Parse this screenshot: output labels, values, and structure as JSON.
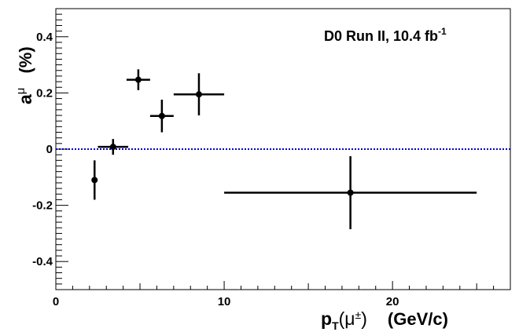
{
  "chart_data": {
    "type": "scatter",
    "annotation": {
      "main": "D0 Run II, 10.4 fb",
      "sup": "-1"
    },
    "xlabel": {
      "p": "p",
      "sub": "T",
      "mu": "(μ",
      "sup": "±",
      "close": ")",
      "units": "(GeV/c)"
    },
    "ylabel": {
      "a": "a",
      "sup": "μ",
      "units": "(%)"
    },
    "xlim": [
      0,
      27
    ],
    "ylim": [
      -0.5,
      0.5
    ],
    "xticks": [
      0,
      10,
      20
    ],
    "xtick_labels": [
      "0",
      "10",
      "20"
    ],
    "yticks": [
      -0.4,
      -0.2,
      0,
      0.2,
      0.4
    ],
    "ytick_labels": [
      "-0.4",
      "-0.2",
      "0",
      "0.2",
      "0.4"
    ],
    "reference_line": {
      "y": 0,
      "style": "dotted",
      "color": "#0000dd"
    },
    "marker_color": "#000000",
    "points": [
      {
        "x": 2.3,
        "y": -0.11,
        "xlo": 2.3,
        "xhi": 2.3,
        "ylo": -0.18,
        "yhi": -0.04
      },
      {
        "x": 3.4,
        "y": 0.008,
        "xlo": 2.5,
        "xhi": 4.3,
        "ylo": -0.02,
        "yhi": 0.036
      },
      {
        "x": 4.9,
        "y": 0.247,
        "xlo": 4.2,
        "xhi": 5.6,
        "ylo": 0.21,
        "yhi": 0.284
      },
      {
        "x": 6.3,
        "y": 0.118,
        "xlo": 5.6,
        "xhi": 7.0,
        "ylo": 0.06,
        "yhi": 0.176
      },
      {
        "x": 8.5,
        "y": 0.195,
        "xlo": 7.0,
        "xhi": 10.0,
        "ylo": 0.12,
        "yhi": 0.27
      },
      {
        "x": 17.5,
        "y": -0.155,
        "xlo": 10.0,
        "xhi": 25.0,
        "ylo": -0.285,
        "yhi": -0.025
      }
    ]
  }
}
